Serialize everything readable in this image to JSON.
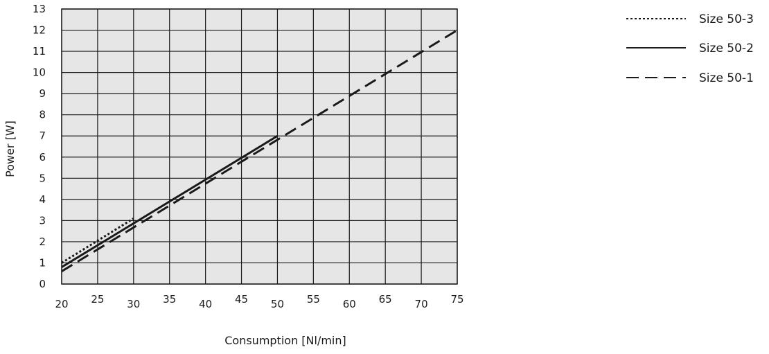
{
  "chart_data": {
    "type": "line",
    "xlabel": "Consumption [Nl/min]",
    "ylabel": "Power [W]",
    "xlim": [
      20,
      75
    ],
    "ylim": [
      0,
      13
    ],
    "x_ticks": [
      20,
      25,
      30,
      35,
      40,
      45,
      50,
      55,
      60,
      65,
      70,
      75
    ],
    "y_ticks": [
      0,
      1,
      2,
      3,
      4,
      5,
      6,
      7,
      8,
      9,
      10,
      11,
      12,
      13
    ],
    "grid": true,
    "legend_position": "top-right, outside plot",
    "plot_background": "#e6e6e6",
    "series": [
      {
        "name": "Size 50-3",
        "style": "dotted",
        "x": [
          20,
          30
        ],
        "y": [
          1.0,
          3.1
        ]
      },
      {
        "name": "Size 50-2",
        "style": "solid",
        "x": [
          20,
          50
        ],
        "y": [
          0.8,
          7.0
        ]
      },
      {
        "name": "Size 50-1",
        "style": "dashed",
        "x": [
          20,
          75
        ],
        "y": [
          0.6,
          12.0
        ]
      }
    ]
  }
}
